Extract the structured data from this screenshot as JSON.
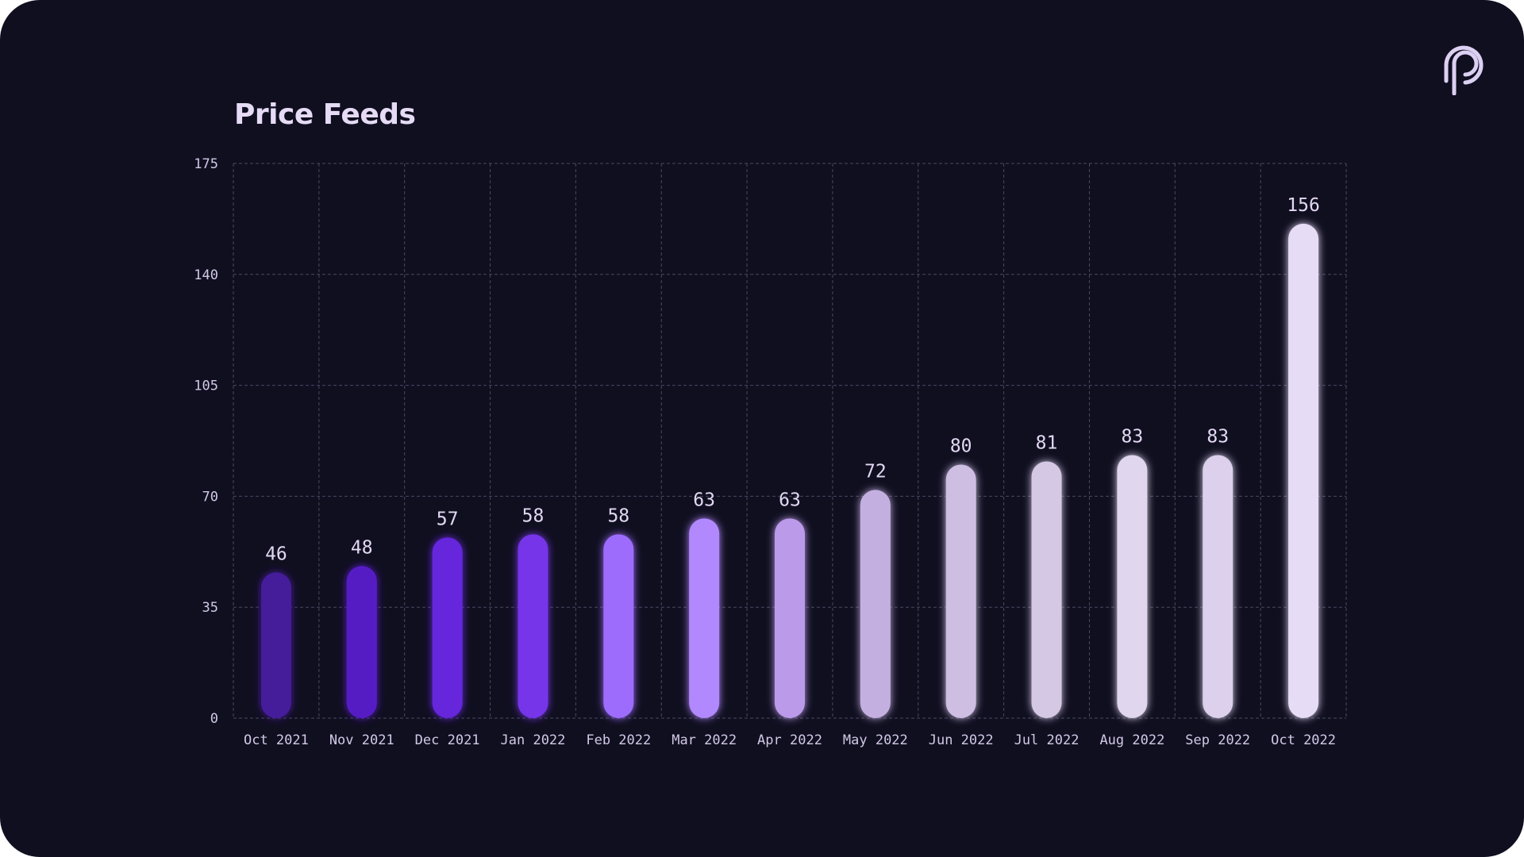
{
  "chart_data": {
    "type": "bar",
    "title": "Price Feeds",
    "categories": [
      "Oct 2021",
      "Nov 2021",
      "Dec 2021",
      "Jan 2022",
      "Feb 2022",
      "Mar 2022",
      "Apr 2022",
      "May 2022",
      "Jun 2022",
      "Jul 2022",
      "Aug 2022",
      "Sep 2022",
      "Oct 2022"
    ],
    "values": [
      46,
      48,
      57,
      58,
      58,
      63,
      63,
      72,
      80,
      81,
      83,
      83,
      156
    ],
    "ylim": [
      0,
      175
    ],
    "yticks": [
      0,
      35,
      70,
      105,
      140,
      175
    ],
    "grid": true,
    "xlabel": "",
    "ylabel": "",
    "bar_colors": [
      "#451b9a",
      "#561ec4",
      "#6526dc",
      "#7635e8",
      "#9d6cfd",
      "#b188fd",
      "#bb9aea",
      "#c4b0e0",
      "#cdbee2",
      "#d4c8e4",
      "#e0d6ee",
      "#dcd0ec",
      "#e6dcf6"
    ]
  },
  "colors": {
    "background": "#100f20",
    "grid": "#4a4860",
    "text": "#d2c8e6",
    "title": "#e6dbf5"
  },
  "logo": {
    "icon": "pyth-logo-icon"
  }
}
